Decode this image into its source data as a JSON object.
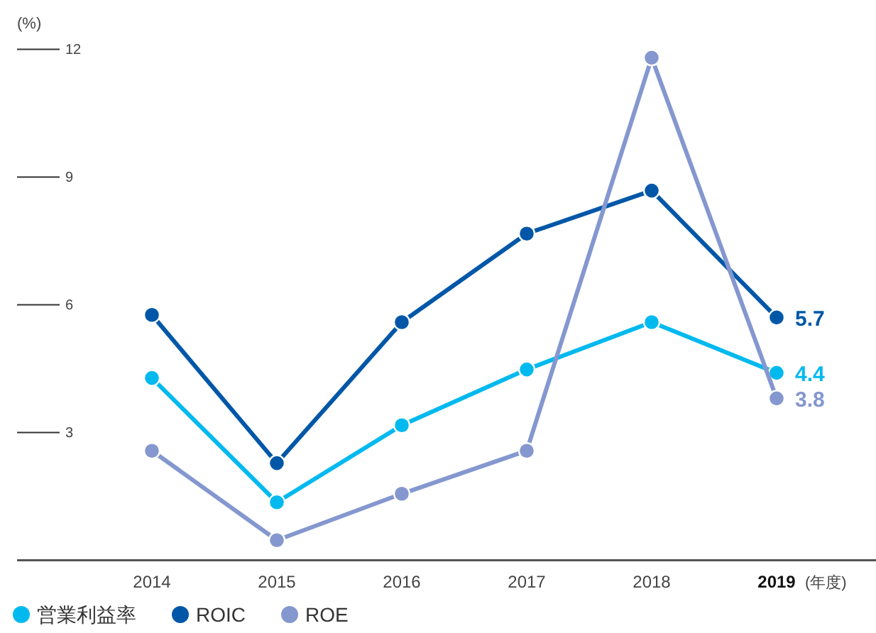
{
  "chart_data": {
    "type": "line",
    "ylabel": "(%)",
    "xlabel": "(年度)",
    "categories": [
      "2014",
      "2015",
      "2016",
      "2017",
      "2018",
      "2019"
    ],
    "ylim": [
      0,
      12
    ],
    "yticks": [
      3,
      6,
      9,
      12
    ],
    "marker": "circle",
    "line_style": "solid",
    "legend": "bottom left",
    "grid": false,
    "series": [
      {
        "name": "営業利益率",
        "color": "#00b9ef",
        "values": [
          4.28,
          1.36,
          3.17,
          4.48,
          5.59,
          4.4
        ],
        "value_labels": [
          null,
          null,
          null,
          null,
          null,
          "4.4"
        ]
      },
      {
        "name": "ROIC",
        "color": "#0057a8",
        "values": [
          5.76,
          2.28,
          5.59,
          7.67,
          8.68,
          5.7
        ],
        "value_labels": [
          null,
          null,
          null,
          null,
          null,
          "5.7"
        ]
      },
      {
        "name": "ROE",
        "color": "#8497cf",
        "values": [
          2.57,
          0.47,
          1.56,
          2.57,
          11.8,
          3.8
        ],
        "value_labels": [
          null,
          null,
          null,
          null,
          null,
          "3.8"
        ]
      }
    ]
  }
}
